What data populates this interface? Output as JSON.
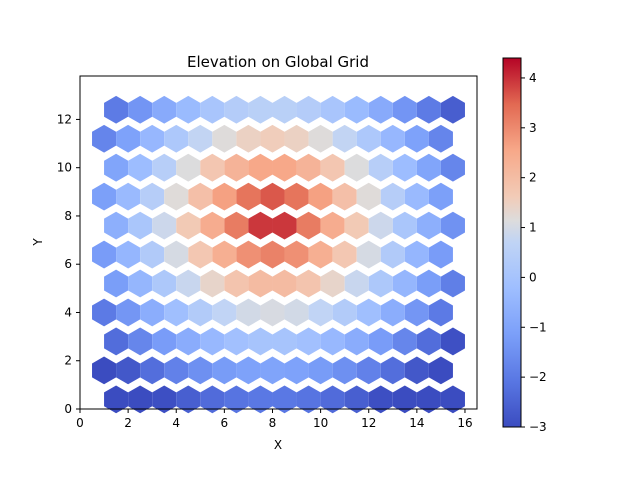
{
  "chart_data": {
    "type": "heatmap",
    "title": "Elevation on Global Grid",
    "xlabel": "X",
    "ylabel": "Y",
    "xlim": [
      0,
      16.5
    ],
    "ylim": [
      0,
      13.8
    ],
    "xticks": [
      0,
      2,
      4,
      6,
      8,
      10,
      12,
      14,
      16
    ],
    "yticks": [
      0,
      2,
      4,
      6,
      8,
      10,
      12
    ],
    "colorbar": {
      "min": -3,
      "max": 4.4,
      "ticks": [
        -3,
        -2,
        -1,
        0,
        1,
        2,
        3,
        4
      ],
      "colormap": "coolwarm"
    },
    "grid": false,
    "hex_cells": {
      "x_spacing": 1,
      "row_spacing": 0.6,
      "description": "hexagonal bins; value ≈ peak at (8,8) decaying radially",
      "peak": {
        "x": 8.0,
        "y": 7.9,
        "value": 4.4
      },
      "min_value": -3,
      "x_range": [
        1,
        16
      ],
      "y_range": [
        0.4,
        13.2
      ]
    }
  }
}
